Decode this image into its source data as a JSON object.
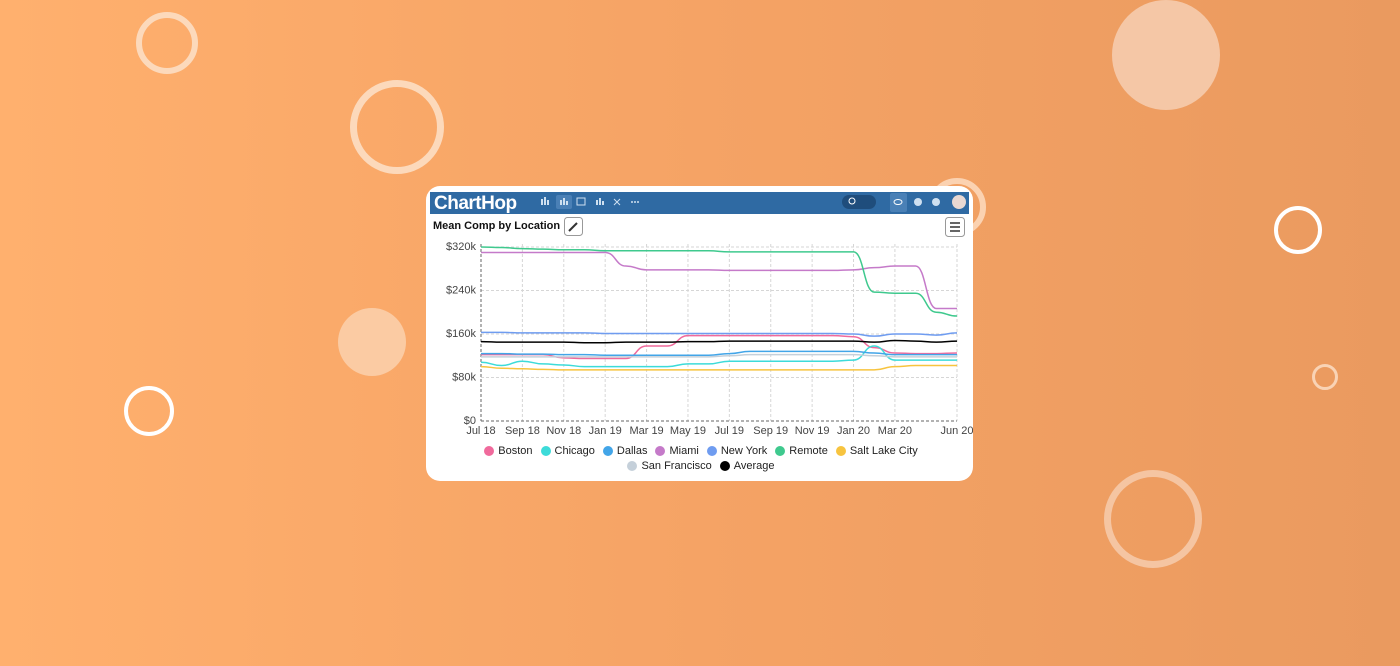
{
  "app": {
    "logo": "ChartHop"
  },
  "chart_data": {
    "type": "line",
    "title": "Mean Comp by Location",
    "categories": [
      "Jul 18",
      null,
      "Sep 18",
      null,
      "Nov 18",
      null,
      "Jan 19",
      null,
      "Mar 19",
      null,
      "May 19",
      null,
      "Jul 19",
      null,
      "Sep 19",
      null,
      "Nov 19",
      null,
      "Jan 20",
      null,
      "Mar 20",
      null,
      null,
      "Jun 20"
    ],
    "ylim": [
      0,
      320
    ],
    "yticks": [
      {
        "value": 0,
        "label": "$0"
      },
      {
        "value": 80,
        "label": "$80k"
      },
      {
        "value": 160,
        "label": "$160k"
      },
      {
        "value": 240,
        "label": "$240k"
      },
      {
        "value": 320,
        "label": "$320k"
      }
    ],
    "grid": true,
    "legend": "bottom",
    "series": [
      {
        "name": "Boston",
        "color": "#f06a9c",
        "values": [
          122,
          122,
          122,
          122,
          116,
          115,
          115,
          115,
          138,
          138,
          157,
          157,
          157,
          157,
          157,
          157,
          157,
          157,
          155,
          135,
          125,
          124,
          124,
          125
        ]
      },
      {
        "name": "Chicago",
        "color": "#3ddbd9",
        "values": [
          108,
          102,
          110,
          105,
          103,
          100,
          100,
          100,
          100,
          100,
          105,
          105,
          110,
          110,
          110,
          110,
          110,
          110,
          112,
          138,
          112,
          112,
          112,
          112
        ]
      },
      {
        "name": "Dallas",
        "color": "#42a5e8",
        "values": [
          124,
          124,
          123,
          123,
          122,
          122,
          121,
          121,
          121,
          121,
          121,
          121,
          124,
          128,
          128,
          128,
          128,
          128,
          128,
          125,
          122,
          122,
          122,
          122
        ]
      },
      {
        "name": "Miami",
        "color": "#c57ac9",
        "values": [
          310,
          310,
          310,
          310,
          310,
          310,
          310,
          285,
          278,
          278,
          278,
          278,
          277,
          277,
          277,
          277,
          277,
          277,
          278,
          282,
          285,
          285,
          207,
          207
        ]
      },
      {
        "name": "New York",
        "color": "#6f9cf0",
        "values": [
          163,
          163,
          162,
          162,
          162,
          162,
          161,
          161,
          161,
          161,
          161,
          161,
          161,
          161,
          161,
          161,
          161,
          161,
          160,
          156,
          160,
          160,
          158,
          162
        ]
      },
      {
        "name": "Remote",
        "color": "#3fc98e",
        "values": [
          320,
          319,
          317,
          316,
          315,
          315,
          313,
          313,
          313,
          313,
          313,
          313,
          311,
          311,
          311,
          311,
          311,
          311,
          311,
          237,
          235,
          235,
          200,
          193
        ]
      },
      {
        "name": "Salt Lake City",
        "color": "#f7c43f",
        "values": [
          100,
          97,
          96,
          95,
          94,
          94,
          94,
          94,
          94,
          94,
          94,
          94,
          94,
          94,
          94,
          94,
          94,
          94,
          94,
          94,
          100,
          102,
          102,
          102
        ]
      },
      {
        "name": "San Francisco",
        "color": "#c5d0da",
        "values": [
          118,
          118,
          118,
          118,
          118,
          118,
          118,
          118,
          118,
          118,
          118,
          118,
          120,
          122,
          122,
          122,
          122,
          122,
          122,
          120,
          118,
          118,
          118,
          118
        ]
      },
      {
        "name": "Average",
        "color": "#000000",
        "values": [
          146,
          145,
          145,
          145,
          145,
          144,
          144,
          145,
          145,
          145,
          146,
          146,
          147,
          147,
          147,
          147,
          147,
          147,
          147,
          145,
          148,
          147,
          145,
          147
        ]
      }
    ]
  }
}
